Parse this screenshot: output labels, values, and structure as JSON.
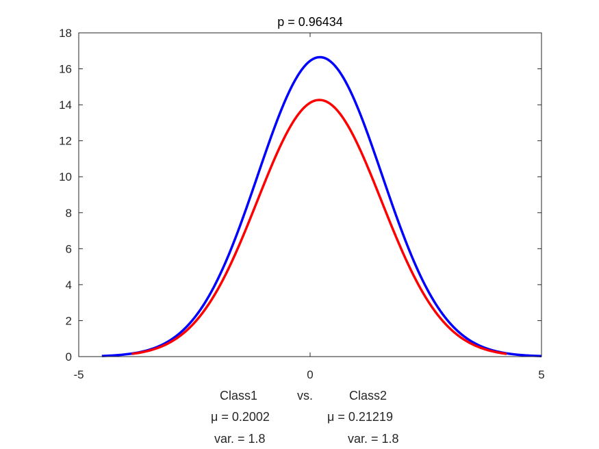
{
  "chart_data": {
    "type": "line",
    "title": "p = 0.96434",
    "xlabel": "",
    "ylabel": "",
    "xlim": [
      -5,
      5
    ],
    "ylim": [
      0,
      18
    ],
    "x_ticks": [
      -5,
      0,
      5
    ],
    "y_ticks": [
      0,
      2,
      4,
      6,
      8,
      10,
      12,
      14,
      16,
      18
    ],
    "grid": false,
    "series": [
      {
        "color": "#0000ff",
        "mu": 0.21219,
        "var": 1.8,
        "peak": 16.65,
        "x_range": [
          -4.5,
          5.0
        ]
      },
      {
        "color": "#ff0000",
        "mu": 0.2002,
        "var": 1.8,
        "peak": 14.27,
        "x_range": [
          -3.85,
          4.25
        ]
      }
    ],
    "annotations": {
      "class1": "Class1",
      "vs": "vs.",
      "class2": "Class2",
      "mu1": "μ = 0.2002",
      "mu2": "μ = 0.21219",
      "var1": "var. = 1.8",
      "var2": "var. = 1.8"
    }
  }
}
